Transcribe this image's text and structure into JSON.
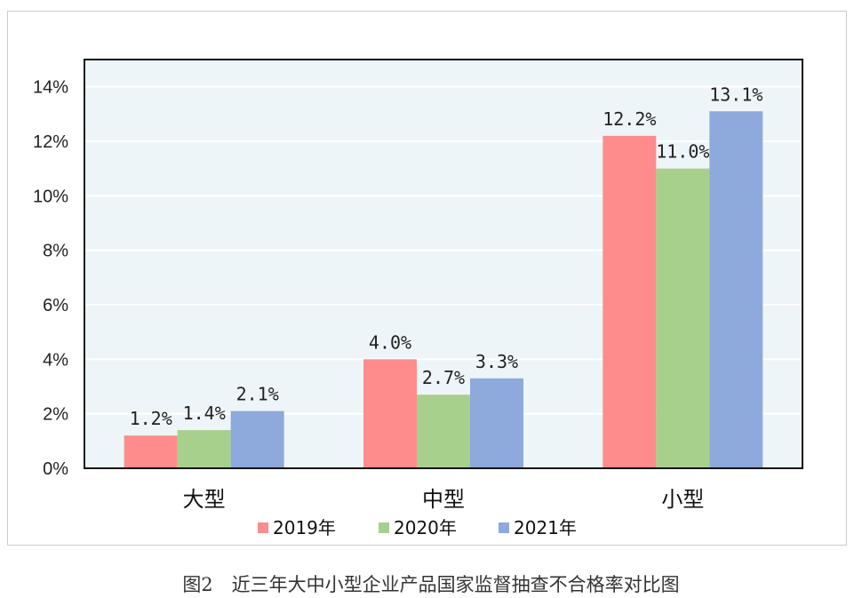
{
  "caption": "图2　近三年大中小型企业产品国家监督抽查不合格率对比图",
  "chart_data": {
    "type": "bar",
    "categories": [
      "大型",
      "中型",
      "小型"
    ],
    "series": [
      {
        "name": "2019年",
        "values": [
          1.2,
          4.0,
          12.2
        ],
        "labels": [
          "1.2%",
          "4.0%",
          "12.2%"
        ],
        "color": "#FF8C8C"
      },
      {
        "name": "2020年",
        "values": [
          1.4,
          2.7,
          11.0
        ],
        "labels": [
          "1.4%",
          "2.7%",
          "11.0%"
        ],
        "color": "#A8D08D"
      },
      {
        "name": "2021年",
        "values": [
          2.1,
          3.3,
          13.1
        ],
        "labels": [
          "2.1%",
          "3.3%",
          "13.1%"
        ],
        "color": "#8EA9DB"
      }
    ],
    "ylim": [
      0,
      15
    ],
    "yticks": [
      0,
      2,
      4,
      6,
      8,
      10,
      12,
      14
    ],
    "ytick_labels": [
      "0%",
      "2%",
      "4%",
      "6%",
      "8%",
      "10%",
      "12%",
      "14%"
    ],
    "grid": true,
    "plot_background": "#EDF5F8",
    "grid_color": "#FFFFFF",
    "legend_position": "bottom"
  }
}
